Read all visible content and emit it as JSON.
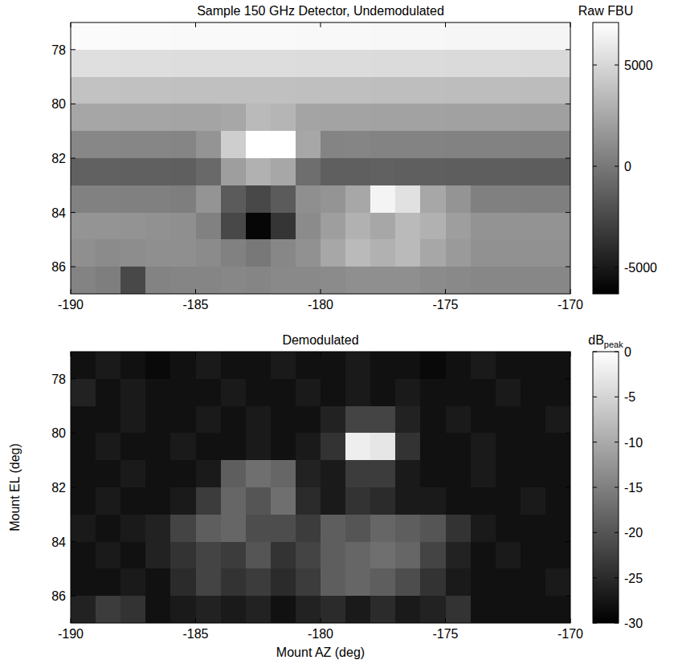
{
  "chart_data": [
    {
      "type": "heatmap",
      "title": "Sample 150 GHz Detector, Undemodulated",
      "x": [
        -189.5,
        -188.5,
        -187.5,
        -186.5,
        -185.5,
        -184.5,
        -183.5,
        -182.5,
        -181.5,
        -180.5,
        -179.5,
        -178.5,
        -177.5,
        -176.5,
        -175.5,
        -174.5,
        -173.5,
        -172.5,
        -171.5,
        -170.5
      ],
      "y": [
        77.5,
        78.5,
        79.5,
        80.5,
        81.5,
        82.5,
        83.5,
        84.5,
        85.5,
        86.5
      ],
      "xlim": [
        -190,
        -170
      ],
      "ylim": [
        87,
        77
      ],
      "xticks": [
        -190,
        -185,
        -180,
        -175,
        -170
      ],
      "yticks": [
        78,
        80,
        82,
        84,
        86
      ],
      "cells": [
        [
          6900,
          6900,
          6850,
          6850,
          6800,
          6800,
          6800,
          6800,
          6800,
          6750,
          6750,
          6750,
          6700,
          6700,
          6700,
          6650,
          6650,
          6650,
          6600,
          6600
        ],
        [
          5400,
          5400,
          5350,
          5350,
          5300,
          5300,
          5300,
          5300,
          5300,
          5250,
          5250,
          5250,
          5200,
          5200,
          5200,
          5150,
          5150,
          5150,
          5100,
          5100
        ],
        [
          3900,
          3900,
          3850,
          3850,
          3800,
          3800,
          3800,
          3800,
          3800,
          3750,
          3750,
          3750,
          3700,
          3700,
          3700,
          3650,
          3650,
          3650,
          3600,
          3600
        ],
        [
          2400,
          2400,
          2350,
          2350,
          2300,
          2300,
          2500,
          3500,
          3200,
          2300,
          2250,
          2250,
          2200,
          2200,
          2200,
          2150,
          2150,
          2150,
          2100,
          2100
        ],
        [
          800,
          800,
          750,
          750,
          700,
          1500,
          4500,
          8500,
          8000,
          2500,
          650,
          700,
          600,
          600,
          600,
          550,
          550,
          550,
          500,
          500
        ],
        [
          -1200,
          -1200,
          -1250,
          -1250,
          -1300,
          -800,
          2000,
          3000,
          2500,
          -500,
          -1300,
          -1300,
          -1200,
          -1300,
          -1300,
          -1350,
          -1350,
          -1350,
          -1400,
          -1400
        ],
        [
          500,
          500,
          450,
          450,
          300,
          1500,
          -1500,
          -2500,
          -1500,
          1200,
          1500,
          2500,
          6500,
          5500,
          2500,
          1500,
          400,
          400,
          350,
          350
        ],
        [
          1500,
          1500,
          1400,
          1300,
          1200,
          500,
          -2500,
          -6000,
          -3500,
          1000,
          2000,
          3000,
          2500,
          3500,
          3000,
          2000,
          1400,
          1400,
          1400,
          1400
        ],
        [
          1200,
          1000,
          1100,
          1200,
          1200,
          1000,
          500,
          0,
          800,
          1300,
          2500,
          3500,
          3000,
          3500,
          2500,
          1800,
          1300,
          1300,
          1300,
          1300
        ],
        [
          600,
          300,
          -2500,
          600,
          700,
          700,
          800,
          700,
          900,
          900,
          1000,
          1200,
          1200,
          1200,
          1000,
          900,
          800,
          800,
          800,
          800
        ]
      ],
      "colorbar_label": "Raw FBU",
      "colorbar_range": [
        -6300,
        7100
      ],
      "colorbar_ticks": [
        -5000,
        0,
        5000
      ]
    },
    {
      "type": "heatmap",
      "title": "Demodulated",
      "xlabel": "Mount AZ (deg)",
      "ylabel": "Mount EL (deg)",
      "x": [
        -189.5,
        -188.5,
        -187.5,
        -186.5,
        -185.5,
        -184.5,
        -183.5,
        -182.5,
        -181.5,
        -180.5,
        -179.5,
        -178.5,
        -177.5,
        -176.5,
        -175.5,
        -174.5,
        -173.5,
        -172.5,
        -171.5,
        -170.5
      ],
      "y": [
        77.5,
        78.5,
        79.5,
        80.5,
        81.5,
        82.5,
        83.5,
        84.5,
        85.5,
        86.5
      ],
      "xlim": [
        -190,
        -170
      ],
      "ylim": [
        87,
        77
      ],
      "xticks": [
        -190,
        -185,
        -180,
        -175,
        -170
      ],
      "yticks": [
        78,
        80,
        82,
        84,
        86
      ],
      "cells": [
        [
          -28,
          -27,
          -28,
          -29,
          -28,
          -27,
          -28,
          -28,
          -27,
          -28,
          -28,
          -27,
          -28,
          -28,
          -29,
          -28,
          -27,
          -28,
          -28,
          -28
        ],
        [
          -26,
          -28,
          -27,
          -28,
          -28,
          -28,
          -27,
          -28,
          -28,
          -27,
          -28,
          -27,
          -28,
          -27,
          -28,
          -28,
          -28,
          -27,
          -28,
          -28
        ],
        [
          -28,
          -28,
          -27,
          -28,
          -28,
          -27,
          -28,
          -27,
          -28,
          -28,
          -26,
          -22,
          -22,
          -26,
          -28,
          -27,
          -28,
          -28,
          -28,
          -27
        ],
        [
          -28,
          -27,
          -28,
          -28,
          -27,
          -28,
          -28,
          -27,
          -28,
          -27,
          -24,
          -2,
          -3,
          -24,
          -28,
          -28,
          -27,
          -28,
          -28,
          -28
        ],
        [
          -28,
          -28,
          -27,
          -28,
          -28,
          -27,
          -19,
          -17,
          -18,
          -26,
          -27,
          -23,
          -23,
          -27,
          -28,
          -28,
          -27,
          -28,
          -28,
          -28
        ],
        [
          -28,
          -27,
          -28,
          -28,
          -27,
          -23,
          -18,
          -20,
          -17,
          -25,
          -27,
          -24,
          -25,
          -27,
          -27,
          -28,
          -28,
          -28,
          -27,
          -28
        ],
        [
          -27,
          -28,
          -27,
          -26,
          -22,
          -19,
          -18,
          -21,
          -21,
          -23,
          -19,
          -20,
          -18,
          -19,
          -20,
          -24,
          -27,
          -28,
          -28,
          -28
        ],
        [
          -28,
          -27,
          -28,
          -26,
          -24,
          -22,
          -23,
          -20,
          -24,
          -22,
          -19,
          -18,
          -17,
          -18,
          -22,
          -26,
          -28,
          -27,
          -28,
          -28
        ],
        [
          -28,
          -28,
          -27,
          -28,
          -25,
          -22,
          -24,
          -23,
          -25,
          -23,
          -19,
          -18,
          -19,
          -21,
          -24,
          -27,
          -28,
          -28,
          -28,
          -27
        ],
        [
          -26,
          -23,
          -24,
          -28,
          -27,
          -26,
          -27,
          -26,
          -28,
          -26,
          -25,
          -27,
          -25,
          -27,
          -26,
          -24,
          -28,
          -28,
          -28,
          -28
        ]
      ],
      "colorbar_label": {
        "text": "dB",
        "subscript": "peak"
      },
      "colorbar_range": [
        -30,
        0
      ],
      "colorbar_ticks": [
        -30,
        -25,
        -20,
        -15,
        -10,
        -5,
        0
      ]
    }
  ]
}
